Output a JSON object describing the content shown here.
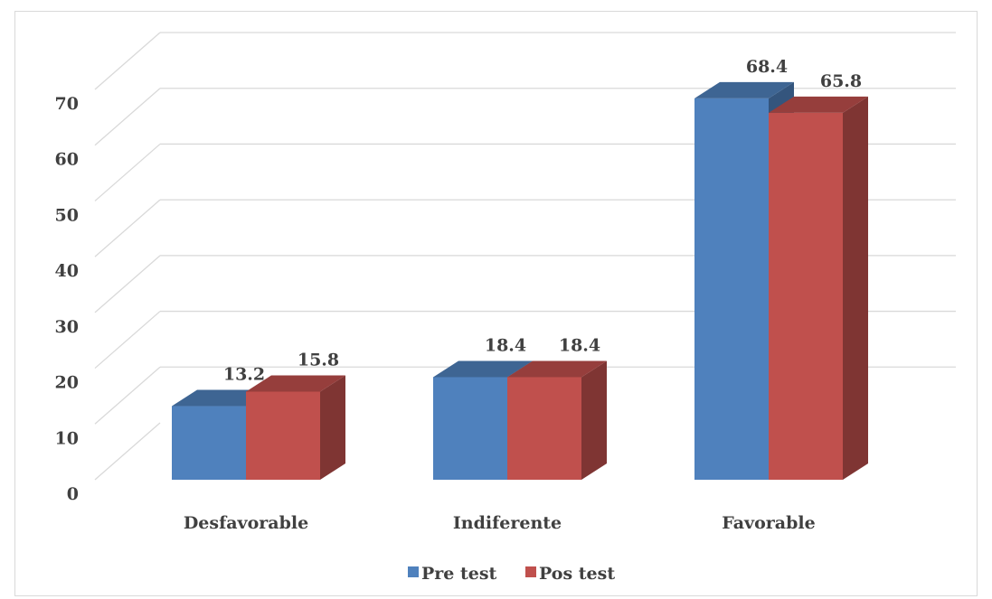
{
  "chart_data": {
    "type": "bar",
    "categories": [
      "Desfavorable",
      "Indiferente",
      "Favorable"
    ],
    "series": [
      {
        "name": "Pre test",
        "values": [
          13.2,
          18.4,
          68.4
        ],
        "color": "#4f81bd"
      },
      {
        "name": "Pos test",
        "values": [
          15.8,
          18.4,
          65.8
        ],
        "color": "#c0504d"
      }
    ],
    "data_labels": [
      [
        "13.2",
        "18.4",
        "68.4"
      ],
      [
        "15.8",
        "18.4",
        "65.8"
      ]
    ],
    "ylim": [
      0,
      70
    ],
    "yticks": [
      0,
      10,
      20,
      30,
      40,
      50,
      60,
      70
    ],
    "grid": true,
    "legend": "bottom",
    "style": "3d-clustered-column"
  }
}
